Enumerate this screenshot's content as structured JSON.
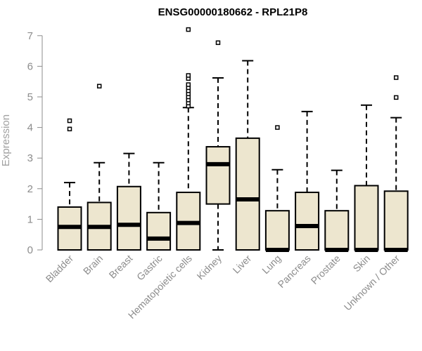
{
  "chart_data": {
    "type": "boxplot",
    "title": "ENSG00000180662 - RPL21P8",
    "xlabel": "",
    "ylabel": "Expression",
    "ylim": [
      0,
      7
    ],
    "yticks": [
      0,
      1,
      2,
      3,
      4,
      5,
      6,
      7
    ],
    "grid": false,
    "legend": "none",
    "box_fill": "#ede6cf",
    "box_stroke": "#000000",
    "categories": [
      "Bladder",
      "Brain",
      "Breast",
      "Gastric",
      "Hematopoietic cells",
      "Kidney",
      "Liver",
      "Lung",
      "Pancreas",
      "Prostate",
      "Skin",
      "Unknown / Other"
    ],
    "boxes": [
      {
        "category": "Bladder",
        "whisker_low": 0,
        "q1": 0,
        "median": 0.75,
        "q3": 1.4,
        "whisker_high": 2.2,
        "outliers": [
          3.95,
          4.22
        ]
      },
      {
        "category": "Brain",
        "whisker_low": 0,
        "q1": 0,
        "median": 0.75,
        "q3": 1.55,
        "whisker_high": 2.85,
        "outliers": [
          5.35
        ]
      },
      {
        "category": "Breast",
        "whisker_low": 0,
        "q1": 0,
        "median": 0.82,
        "q3": 2.07,
        "whisker_high": 3.15,
        "outliers": []
      },
      {
        "category": "Gastric",
        "whisker_low": 0,
        "q1": 0,
        "median": 0.37,
        "q3": 1.22,
        "whisker_high": 2.85,
        "outliers": []
      },
      {
        "category": "Hematopoietic cells",
        "whisker_low": 0,
        "q1": 0,
        "median": 0.88,
        "q3": 1.88,
        "whisker_high": 4.65,
        "outliers": [
          4.7,
          4.8,
          4.9,
          5.0,
          5.1,
          5.2,
          5.3,
          5.4,
          5.6,
          5.7,
          7.2
        ]
      },
      {
        "category": "Kidney",
        "whisker_low": 0,
        "q1": 1.5,
        "median": 2.8,
        "q3": 3.37,
        "whisker_high": 5.62,
        "outliers": [
          6.77
        ]
      },
      {
        "category": "Liver",
        "whisker_low": 0,
        "q1": 0,
        "median": 1.65,
        "q3": 3.65,
        "whisker_high": 6.18,
        "outliers": []
      },
      {
        "category": "Lung",
        "whisker_low": 0,
        "q1": 0,
        "median": 0,
        "q3": 1.28,
        "whisker_high": 2.62,
        "outliers": [
          4.0
        ]
      },
      {
        "category": "Pancreas",
        "whisker_low": 0,
        "q1": 0,
        "median": 0.78,
        "q3": 1.88,
        "whisker_high": 4.52,
        "outliers": []
      },
      {
        "category": "Prostate",
        "whisker_low": 0,
        "q1": 0,
        "median": 0,
        "q3": 1.28,
        "whisker_high": 2.6,
        "outliers": []
      },
      {
        "category": "Skin",
        "whisker_low": 0,
        "q1": 0,
        "median": 0,
        "q3": 2.1,
        "whisker_high": 4.73,
        "outliers": []
      },
      {
        "category": "Unknown / Other",
        "whisker_low": 0,
        "q1": 0,
        "median": 0,
        "q3": 1.92,
        "whisker_high": 4.32,
        "outliers": [
          4.98,
          5.63
        ]
      }
    ]
  }
}
